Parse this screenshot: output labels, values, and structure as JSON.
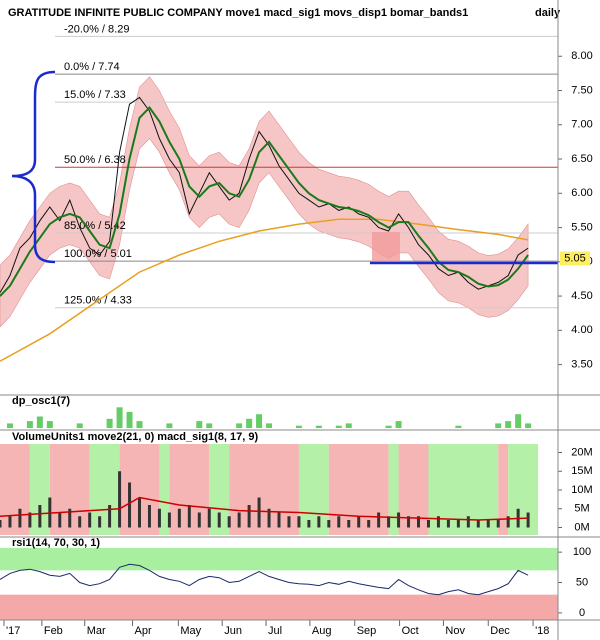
{
  "chart_data": [
    {
      "type": "line",
      "title": "GRATITUDE INFINITE PUBLIC COMPANY move1 macd_sig1 movs_disp1 bomar_bands1",
      "interval": "daily",
      "x": [
        0,
        1,
        2,
        3,
        4,
        5,
        6,
        7,
        8,
        9,
        10,
        11,
        12,
        13,
        14,
        15,
        16,
        17,
        18,
        19,
        20,
        21,
        22,
        23,
        24,
        25,
        26,
        27,
        28,
        29,
        30,
        31,
        32,
        33,
        34,
        35,
        36,
        37,
        38,
        39,
        40,
        41,
        42,
        43,
        44,
        45,
        46,
        47,
        48,
        49,
        50,
        51,
        52,
        53
      ],
      "close": {
        "color": "#111111",
        "values": [
          4.55,
          4.8,
          5.2,
          5.35,
          5.6,
          5.8,
          5.6,
          5.9,
          5.5,
          5.2,
          5.1,
          5.3,
          6.6,
          7.3,
          7.4,
          7.2,
          6.8,
          6.5,
          6.3,
          5.7,
          6.0,
          6.3,
          6.1,
          5.9,
          6.0,
          6.5,
          6.9,
          6.7,
          6.4,
          6.2,
          6.0,
          5.9,
          5.8,
          5.85,
          5.75,
          5.8,
          5.7,
          5.65,
          5.5,
          5.45,
          5.7,
          5.5,
          5.25,
          5.1,
          4.9,
          4.8,
          4.85,
          4.7,
          4.6,
          4.65,
          4.7,
          4.8,
          5.1,
          5.2
        ]
      },
      "fast_ma": {
        "color": "#1a7a1a",
        "values": [
          4.5,
          4.65,
          4.9,
          5.15,
          5.35,
          5.55,
          5.65,
          5.7,
          5.65,
          5.45,
          5.25,
          5.2,
          5.7,
          6.5,
          7.1,
          7.25,
          7.05,
          6.75,
          6.5,
          6.1,
          5.95,
          6.1,
          6.15,
          6.0,
          5.95,
          6.2,
          6.6,
          6.75,
          6.55,
          6.35,
          6.15,
          6.0,
          5.9,
          5.85,
          5.8,
          5.78,
          5.74,
          5.68,
          5.58,
          5.5,
          5.58,
          5.58,
          5.38,
          5.2,
          5.0,
          4.88,
          4.85,
          4.78,
          4.68,
          4.64,
          4.66,
          4.74,
          4.9,
          5.1
        ]
      },
      "band_upper": {
        "values": [
          4.95,
          5.1,
          5.35,
          5.6,
          5.8,
          6.0,
          6.1,
          6.15,
          6.1,
          5.9,
          5.7,
          5.65,
          6.15,
          6.95,
          7.55,
          7.7,
          7.5,
          7.2,
          6.95,
          6.55,
          6.4,
          6.55,
          6.6,
          6.45,
          6.4,
          6.65,
          7.05,
          7.2,
          7.0,
          6.8,
          6.6,
          6.45,
          6.35,
          6.3,
          6.25,
          6.23,
          6.19,
          6.13,
          6.03,
          5.95,
          6.03,
          6.03,
          5.83,
          5.65,
          5.45,
          5.33,
          5.3,
          5.23,
          5.13,
          5.09,
          5.11,
          5.19,
          5.35,
          5.55
        ]
      },
      "band_lower": {
        "values": [
          4.05,
          4.2,
          4.45,
          4.7,
          4.9,
          5.1,
          5.2,
          5.25,
          5.2,
          5.0,
          4.8,
          4.75,
          5.25,
          6.05,
          6.65,
          6.8,
          6.6,
          6.3,
          6.05,
          5.65,
          5.5,
          5.65,
          5.7,
          5.55,
          5.5,
          5.75,
          6.15,
          6.3,
          6.1,
          5.9,
          5.7,
          5.55,
          5.45,
          5.4,
          5.35,
          5.33,
          5.29,
          5.23,
          5.13,
          5.05,
          5.13,
          5.13,
          4.93,
          4.75,
          4.55,
          4.43,
          4.4,
          4.33,
          4.23,
          4.19,
          4.21,
          4.29,
          4.45,
          4.65
        ]
      },
      "band_color": "#f6c6c6",
      "slow_ma": {
        "color": "#e8a020",
        "x": [
          0,
          5,
          10,
          14,
          18,
          22,
          26,
          30,
          34,
          38,
          42,
          46,
          50,
          53
        ],
        "values": [
          3.55,
          3.95,
          4.45,
          4.85,
          5.1,
          5.3,
          5.45,
          5.55,
          5.62,
          5.62,
          5.55,
          5.47,
          5.4,
          5.32
        ]
      },
      "levels": [
        {
          "value": 8.29,
          "label": "-20.0% / 8.29",
          "color": "#cccccc"
        },
        {
          "value": 7.74,
          "label": "0.0% / 7.74",
          "color": "#888888"
        },
        {
          "value": 7.33,
          "label": "15.0% / 7.33",
          "color": "#cccccc"
        },
        {
          "value": 6.38,
          "label": "50.0% / 6.38",
          "color": "#e03030"
        },
        {
          "value": 5.42,
          "label": "85.0% / 5.42",
          "color": "#cccccc"
        },
        {
          "value": 5.01,
          "label": "100.0% / 5.01",
          "color": "#888888"
        },
        {
          "value": 4.33,
          "label": "125.0% / 4.33",
          "color": "#cccccc"
        }
      ],
      "last_price": 5.05,
      "ylim": [
        3.1,
        8.5
      ],
      "yticks": [
        {
          "value": 3.5,
          "label": "3.50"
        },
        {
          "value": 4,
          "label": "4.00"
        },
        {
          "value": 4.5,
          "label": "4.50"
        },
        {
          "value": 5,
          "label": "5.00"
        },
        {
          "value": 5.5,
          "label": "5.50"
        },
        {
          "value": 6,
          "label": "6.00"
        },
        {
          "value": 6.5,
          "label": "6.50"
        },
        {
          "value": 7,
          "label": "7.00"
        },
        {
          "value": 7.5,
          "label": "7.50"
        },
        {
          "value": 8,
          "label": "8.00"
        }
      ]
    },
    {
      "type": "bar",
      "title": "dp_osc1(7)",
      "color": "#66cc66",
      "ylim": [
        0,
        1
      ],
      "values": [
        0,
        0.2,
        0,
        0.3,
        0.5,
        0.3,
        0,
        0,
        0.2,
        0,
        0,
        0.4,
        0.9,
        0.7,
        0.3,
        0,
        0,
        0.2,
        0,
        0,
        0.3,
        0.2,
        0,
        0,
        0.2,
        0.4,
        0.6,
        0.2,
        0,
        0,
        0.1,
        0,
        0.1,
        0,
        0.1,
        0.2,
        0,
        0,
        0,
        0.1,
        0.3,
        0,
        0,
        0,
        0,
        0,
        0.1,
        0,
        0,
        0,
        0.2,
        0.3,
        0.6,
        0.2
      ]
    },
    {
      "type": "bar",
      "title": "VolumeUnits1 move2(21, 0) macd_sig1(8, 17, 9)",
      "color": "#333333",
      "values": [
        2,
        3,
        5,
        4,
        6,
        8,
        4,
        5,
        3,
        4,
        3,
        6,
        15,
        12,
        8,
        6,
        5,
        4,
        5,
        6,
        4,
        5,
        4,
        3,
        4,
        6,
        8,
        5,
        4,
        3,
        3,
        2,
        3,
        2,
        3,
        2,
        3,
        2,
        4,
        3,
        4,
        3,
        3,
        2,
        3,
        2,
        2,
        3,
        2,
        2,
        2,
        3,
        5,
        4
      ],
      "average": {
        "color": "#cc0000",
        "x": [
          0,
          6,
          12,
          14,
          18,
          24,
          30,
          36,
          42,
          48,
          53
        ],
        "values": [
          3,
          4,
          5,
          8,
          6,
          4.5,
          4,
          3,
          2.5,
          2,
          2.5
        ]
      },
      "regions": [
        {
          "from": 0,
          "to": 3,
          "color": "#f5b5b5"
        },
        {
          "from": 3,
          "to": 5,
          "color": "#b5f0a8"
        },
        {
          "from": 5,
          "to": 9,
          "color": "#f5b5b5"
        },
        {
          "from": 9,
          "to": 12,
          "color": "#b5f0a8"
        },
        {
          "from": 12,
          "to": 16,
          "color": "#f5b5b5"
        },
        {
          "from": 16,
          "to": 17,
          "color": "#b5f0a8"
        },
        {
          "from": 17,
          "to": 21,
          "color": "#f5b5b5"
        },
        {
          "from": 21,
          "to": 23,
          "color": "#b5f0a8"
        },
        {
          "from": 23,
          "to": 30,
          "color": "#f5b5b5"
        },
        {
          "from": 30,
          "to": 33,
          "color": "#b5f0a8"
        },
        {
          "from": 33,
          "to": 39,
          "color": "#f5b5b5"
        },
        {
          "from": 39,
          "to": 40,
          "color": "#b5f0a8"
        },
        {
          "from": 40,
          "to": 43,
          "color": "#f5b5b5"
        },
        {
          "from": 43,
          "to": 50,
          "color": "#b5f0a8"
        },
        {
          "from": 50,
          "to": 51,
          "color": "#f5b5b5"
        },
        {
          "from": 51,
          "to": 54,
          "color": "#b5f0a8"
        }
      ],
      "ylim": [
        -2,
        22
      ],
      "yticks": [
        {
          "value": 0,
          "label": "0M"
        },
        {
          "value": 5,
          "label": "5M"
        },
        {
          "value": 10,
          "label": "10M"
        },
        {
          "value": 15,
          "label": "15M"
        },
        {
          "value": 20,
          "label": "20M"
        }
      ]
    },
    {
      "type": "line",
      "title": "rsi1(14, 70, 30, 1)",
      "color": "#1a2a6a",
      "values": [
        55,
        65,
        70,
        72,
        68,
        62,
        60,
        65,
        50,
        45,
        48,
        55,
        75,
        80,
        78,
        70,
        60,
        55,
        52,
        45,
        55,
        60,
        58,
        50,
        52,
        60,
        68,
        60,
        55,
        50,
        48,
        47,
        45,
        50,
        47,
        52,
        48,
        45,
        42,
        40,
        55,
        45,
        38,
        32,
        30,
        35,
        38,
        32,
        30,
        35,
        40,
        48,
        70,
        62
      ],
      "bands": [
        {
          "from": 70,
          "to": 107,
          "color": "#a8f0a0"
        },
        {
          "from": -12,
          "to": 30,
          "color": "#f5a8a8"
        }
      ],
      "ylim": [
        -15,
        120
      ],
      "yticks": [
        0,
        50,
        100
      ],
      "xlim": [
        0,
        56
      ],
      "xticks": [
        {
          "value": 0.4,
          "label": "'17"
        },
        {
          "value": 4.2,
          "label": "Feb"
        },
        {
          "value": 8.5,
          "label": "Mar"
        },
        {
          "value": 13.3,
          "label": "Apr"
        },
        {
          "value": 17.9,
          "label": "May"
        },
        {
          "value": 22.3,
          "label": "Jun"
        },
        {
          "value": 26.7,
          "label": "Jul"
        },
        {
          "value": 31.1,
          "label": "Aug"
        },
        {
          "value": 35.6,
          "label": "Sep"
        },
        {
          "value": 40.1,
          "label": "Oct"
        },
        {
          "value": 44.5,
          "label": "Nov"
        },
        {
          "value": 49,
          "label": "Dec"
        },
        {
          "value": 53.5,
          "label": "'18"
        }
      ]
    }
  ]
}
